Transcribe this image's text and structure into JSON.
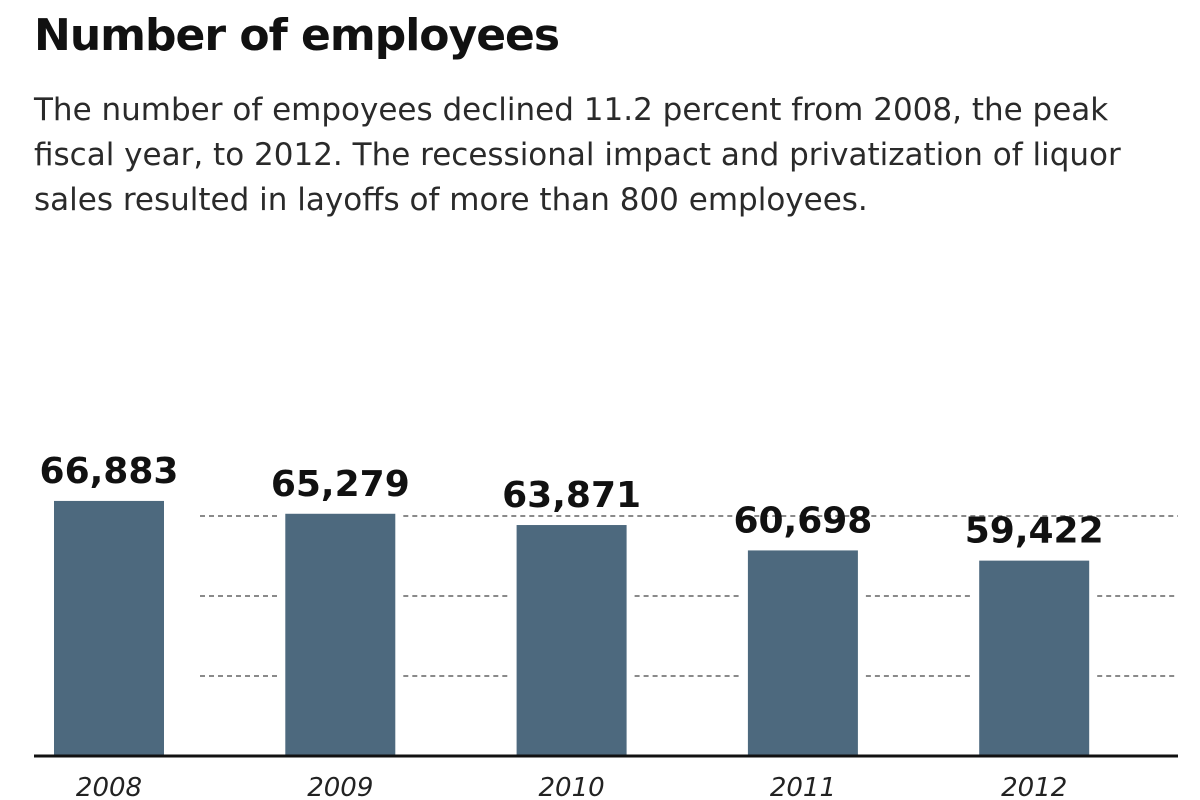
{
  "chart_data": {
    "type": "bar",
    "title": "Number of employees",
    "subtitle": "The number of empoyees declined 11.2 percent from 2008, the peak fiscal year, to 2012. The recessional impact and privatization of liquor sales resulted in layoffs of more than 800 employees.",
    "categories": [
      "2008",
      "2009",
      "2010",
      "2011",
      "2012"
    ],
    "values": [
      66883,
      65279,
      63871,
      60698,
      59422
    ],
    "value_labels": [
      "66,883",
      "65,279",
      "63,871",
      "60,698",
      "59,422"
    ],
    "xlabel": "",
    "ylabel": "",
    "ylim": [
      35000,
      70000
    ],
    "grid": true,
    "gridlines": [
      45000,
      55000,
      65000
    ],
    "legend": "none",
    "colors": {
      "bar": "#4d697e",
      "grid": "#8a8a8a",
      "baseline": "#111111",
      "text": "#111111"
    }
  }
}
